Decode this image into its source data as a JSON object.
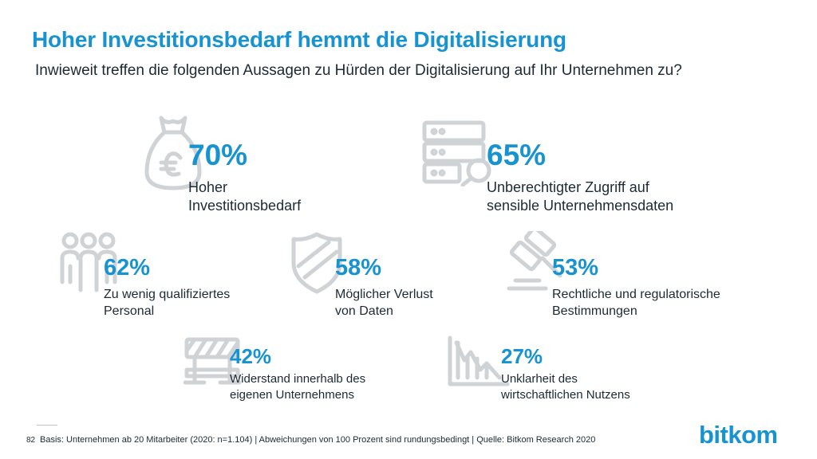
{
  "title": "Hoher Investitionsbedarf hemmt die Digitalisierung",
  "subtitle": "Inwieweit treffen die folgenden Aussagen zu Hürden der Digitalisierung auf Ihr Unternehmen zu?",
  "chart_data": {
    "type": "table",
    "title": "Hoher Investitionsbedarf hemmt die Digitalisierung",
    "subtitle": "Inwieweit treffen die folgenden Aussagen zu Hürden der Digitalisierung auf Ihr Unternehmen zu?",
    "unit": "%",
    "items": [
      {
        "value": 70,
        "display": "70%",
        "label_lines": [
          "Hoher",
          "Investitionsbedarf"
        ],
        "icon": "money-bag-euro-icon"
      },
      {
        "value": 65,
        "display": "65%",
        "label_lines": [
          "Unberechtigter Zugriff auf",
          "sensible Unternehmensdaten"
        ],
        "icon": "server-search-icon"
      },
      {
        "value": 62,
        "display": "62%",
        "label_lines": [
          "Zu wenig qualifiziertes",
          "Personal"
        ],
        "icon": "people-icon"
      },
      {
        "value": 58,
        "display": "58%",
        "label_lines": [
          "Möglicher Verlust",
          "von Daten"
        ],
        "icon": "shield-icon"
      },
      {
        "value": 53,
        "display": "53%",
        "label_lines": [
          "Rechtliche und regulatorische",
          "Bestimmungen"
        ],
        "icon": "gavel-icon"
      },
      {
        "value": 42,
        "display": "42%",
        "label_lines": [
          "Widerstand innerhalb des",
          "eigenen Unternehmens"
        ],
        "icon": "barrier-icon"
      },
      {
        "value": 27,
        "display": "27%",
        "label_lines": [
          "Unklarheit des",
          "wirtschaftlichen Nutzens"
        ],
        "icon": "declining-chart-icon"
      }
    ]
  },
  "footer": {
    "page_number": "82",
    "source": "Basis: Unternehmen ab 20 Mitarbeiter (2020: n=1.104) | Abweichungen von 100 Prozent sind rundungsbedingt | Quelle: Bitkom Research 2020",
    "logo": "bitkom"
  },
  "colors": {
    "accent": "#1793d1",
    "text": "#1c2a33",
    "icon": "#cfd3d6"
  }
}
